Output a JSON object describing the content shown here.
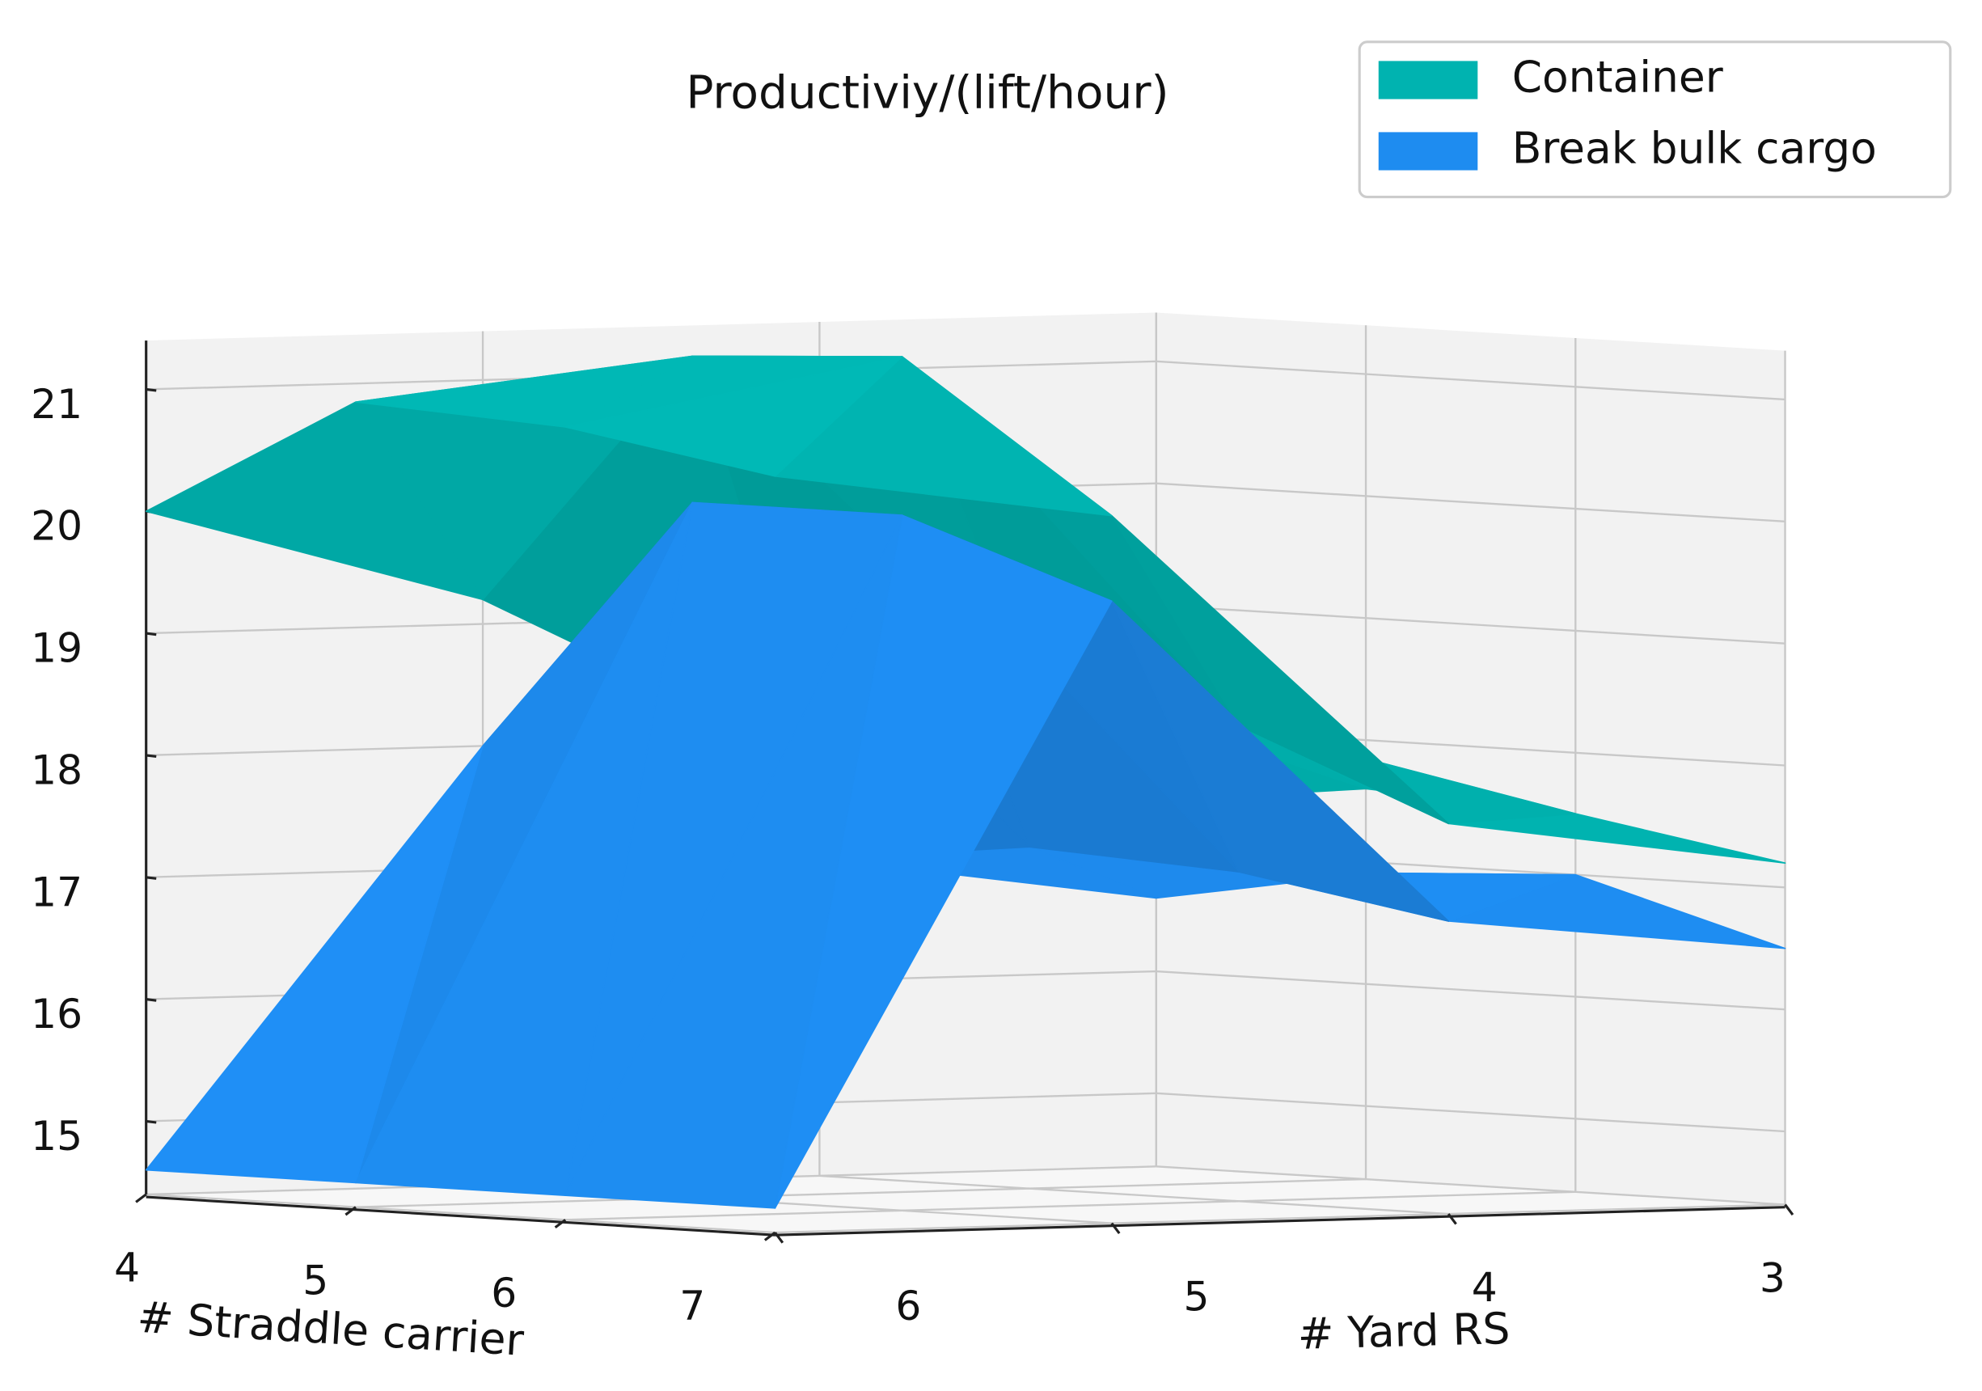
{
  "chart_data": {
    "type": "surface3d",
    "title": "Productiviy/(lift/hour)",
    "xlabel": "# Straddle carrier",
    "ylabel": "# Yard RS",
    "x": [
      4,
      5,
      6,
      7
    ],
    "y": [
      3,
      4,
      5,
      6
    ],
    "xlim": [
      4,
      7
    ],
    "ylim": [
      3,
      6
    ],
    "zlim": [
      14.4,
      21.4
    ],
    "xticks": [
      4,
      5,
      6,
      7
    ],
    "yticks": [
      3,
      4,
      5,
      6
    ],
    "zticks": [
      15,
      16,
      17,
      18,
      19,
      20,
      21
    ],
    "grid": true,
    "legend": "upper right",
    "series": [
      {
        "name": "Container",
        "color": "#00b3b0",
        "values": [
          [
            17.4,
            17.8,
            19.2,
            20.0
          ],
          [
            17.6,
            18.6,
            21.3,
            21.0
          ],
          [
            17.5,
            18.3,
            21.4,
            20.9
          ],
          [
            17.2,
            17.6,
            20.2,
            20.6
          ]
        ]
      },
      {
        "name": "Break bulk cargo",
        "color": "#1e8cf0",
        "values": [
          [
            16.6,
            17.0,
            18.0,
            14.6
          ],
          [
            16.9,
            17.2,
            20.1,
            14.6
          ],
          [
            17.0,
            17.1,
            20.1,
            14.6
          ],
          [
            16.5,
            16.8,
            19.5,
            14.6
          ]
        ]
      }
    ]
  }
}
